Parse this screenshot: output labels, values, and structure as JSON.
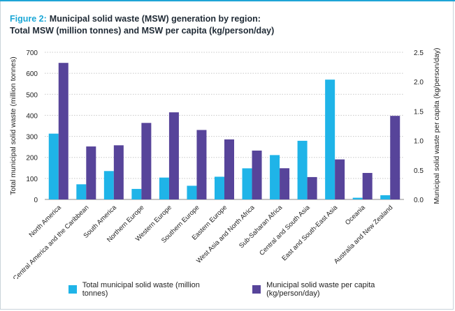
{
  "figure_label": "Figure 2:",
  "title_line1": "Municipal solid waste (MSW) generation by region:",
  "title_line2": "Total MSW (million tonnes) and MSW per capita (kg/person/day)",
  "colors": {
    "total": "#1fb4e8",
    "per_capita": "#57449a",
    "accent": "#1ba7d6"
  },
  "chart_data": {
    "type": "bar",
    "categories": [
      "North America",
      "Central America and the Caribbean",
      "South America",
      "Northern Europe",
      "Western Europe",
      "Southern Europe",
      "Eastern Europe",
      "West Asia and North Africa",
      "Sub-Saharan Africa",
      "Central and South Asia",
      "East and South-East Asia",
      "Oceania",
      "Australia and New Zealand"
    ],
    "series": [
      {
        "name": "Total municipal solid waste (million tonnes)",
        "axis": "left",
        "values": [
          313,
          72,
          135,
          50,
          104,
          65,
          108,
          148,
          211,
          279,
          570,
          8,
          20
        ]
      },
      {
        "name": "Municipal solid waste per capita (kg/person/day)",
        "axis": "right",
        "values": [
          2.32,
          0.9,
          0.92,
          1.3,
          1.48,
          1.18,
          1.02,
          0.83,
          0.53,
          0.38,
          0.68,
          0.45,
          1.42
        ]
      }
    ],
    "ylabel": "Total municipal solid waste  (million tonnes)",
    "ylabel_right": "Municipal solid waste per capita (kg/person/day)",
    "ylim": [
      0,
      700
    ],
    "ylim_right": [
      0,
      2.5
    ],
    "yticks": [
      "0",
      "100",
      "200",
      "300",
      "400",
      "500",
      "600",
      "700"
    ],
    "yticks_right": [
      "0.0",
      "0.5",
      "1.0",
      "1.5",
      "2.0",
      "2.5"
    ],
    "grid": true,
    "legend_position": "bottom"
  }
}
